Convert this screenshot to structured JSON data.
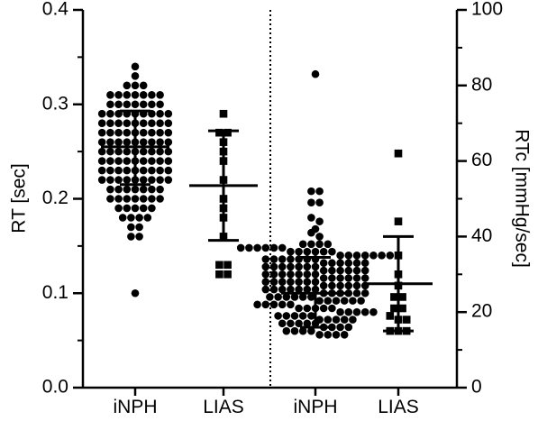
{
  "chart_data": {
    "type": "scatter",
    "subtype": "dot-plot-with-mean-and-sd",
    "left_axis": {
      "label": "RT [sec]",
      "ylim": [
        0.0,
        0.4
      ],
      "ticks": [
        "0.0",
        "0.1",
        "0.2",
        "0.3",
        "0.4"
      ],
      "tick_values": [
        0.0,
        0.1,
        0.2,
        0.3,
        0.4
      ]
    },
    "right_axis": {
      "label": "RTc [mmHg/sec]",
      "ylim": [
        0,
        100
      ],
      "ticks": [
        "0",
        "20",
        "40",
        "60",
        "80",
        "100"
      ],
      "tick_values": [
        0,
        20,
        40,
        60,
        80,
        100
      ]
    },
    "categories": [
      "iNPH",
      "LIAS",
      "iNPH",
      "LIAS"
    ],
    "divider_after_category": 2,
    "groups": [
      {
        "label": "iNPH",
        "axis": "left",
        "marker": "circle",
        "mean": 0.255,
        "sd_low": 0.215,
        "sd_high": 0.293,
        "values": [
          0.34,
          0.33,
          0.32,
          0.32,
          0.32,
          0.31,
          0.31,
          0.31,
          0.31,
          0.31,
          0.31,
          0.31,
          0.3,
          0.3,
          0.3,
          0.3,
          0.3,
          0.3,
          0.3,
          0.29,
          0.29,
          0.29,
          0.29,
          0.29,
          0.29,
          0.29,
          0.29,
          0.29,
          0.28,
          0.28,
          0.28,
          0.28,
          0.28,
          0.28,
          0.28,
          0.28,
          0.28,
          0.27,
          0.27,
          0.27,
          0.27,
          0.27,
          0.27,
          0.27,
          0.27,
          0.27,
          0.26,
          0.26,
          0.26,
          0.26,
          0.26,
          0.26,
          0.26,
          0.26,
          0.26,
          0.25,
          0.25,
          0.25,
          0.25,
          0.25,
          0.25,
          0.25,
          0.25,
          0.25,
          0.24,
          0.24,
          0.24,
          0.24,
          0.24,
          0.24,
          0.24,
          0.24,
          0.24,
          0.23,
          0.23,
          0.23,
          0.23,
          0.23,
          0.23,
          0.23,
          0.23,
          0.23,
          0.22,
          0.22,
          0.22,
          0.22,
          0.22,
          0.22,
          0.22,
          0.22,
          0.22,
          0.21,
          0.21,
          0.21,
          0.21,
          0.21,
          0.21,
          0.21,
          0.2,
          0.2,
          0.2,
          0.2,
          0.2,
          0.2,
          0.2,
          0.19,
          0.19,
          0.19,
          0.19,
          0.19,
          0.18,
          0.18,
          0.18,
          0.18,
          0.17,
          0.17,
          0.16,
          0.16,
          0.1
        ]
      },
      {
        "label": "LIAS",
        "axis": "left",
        "marker": "square",
        "mean": 0.214,
        "sd_low": 0.156,
        "sd_high": 0.272,
        "values": [
          0.29,
          0.27,
          0.27,
          0.26,
          0.25,
          0.24,
          0.22,
          0.2,
          0.19,
          0.18,
          0.16,
          0.13,
          0.13,
          0.12,
          0.12
        ]
      },
      {
        "label": "iNPH",
        "axis": "right",
        "marker": "circle",
        "mean": 25.0,
        "sd_low": 16.0,
        "sd_high": 34.5,
        "values": [
          83,
          52,
          52,
          49,
          49,
          45,
          44,
          42,
          41,
          40,
          38,
          38,
          38,
          38,
          37,
          37,
          37,
          37,
          37,
          37,
          36,
          36,
          36,
          36,
          36,
          36,
          35,
          35,
          35,
          35,
          35,
          35,
          35,
          34,
          34,
          34,
          34,
          34,
          34,
          34,
          33,
          33,
          33,
          33,
          33,
          33,
          32,
          32,
          32,
          32,
          32,
          32,
          32,
          31,
          31,
          31,
          31,
          31,
          31,
          30,
          30,
          30,
          30,
          30,
          30,
          30,
          29,
          29,
          29,
          29,
          29,
          29,
          28,
          28,
          28,
          28,
          28,
          28,
          28,
          27,
          27,
          27,
          27,
          27,
          27,
          26,
          26,
          26,
          26,
          26,
          26,
          26,
          25,
          25,
          25,
          25,
          25,
          25,
          24,
          24,
          24,
          24,
          24,
          24,
          23,
          23,
          23,
          23,
          23,
          23,
          22,
          22,
          22,
          22,
          22,
          21,
          21,
          21,
          21,
          21,
          20,
          20,
          20,
          20,
          20,
          19,
          19,
          19,
          19,
          19,
          18,
          18,
          18,
          18,
          18,
          17,
          17,
          17,
          17,
          17,
          16,
          16,
          16,
          16,
          15,
          15,
          15,
          15,
          14,
          14,
          14,
          14
        ]
      },
      {
        "label": "LIAS",
        "axis": "right",
        "marker": "square",
        "mean": 27.5,
        "sd_low": 15.0,
        "sd_high": 40.0,
        "values": [
          62,
          44,
          35,
          30,
          27,
          24,
          24,
          21,
          21,
          19,
          18,
          18,
          15,
          15,
          15
        ]
      }
    ]
  }
}
